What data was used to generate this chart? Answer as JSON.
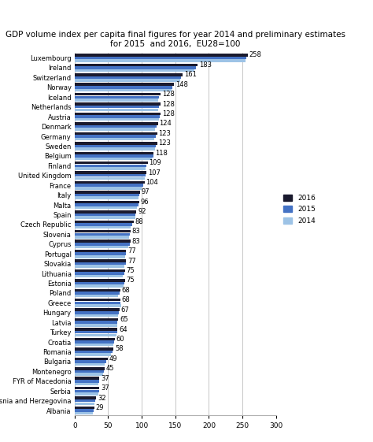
{
  "title": "GDP volume index per capita final figures for year 2014 and preliminary estimates\nfor 2015  and 2016,  EU28=100",
  "countries": [
    "Luxembourg",
    "Ireland",
    "Switzerland",
    "Norway",
    "Iceland",
    "Netherlands",
    "Austria",
    "Denmark",
    "Germany",
    "Sweden",
    "Belgium",
    "Finland",
    "United Kingdom",
    "France",
    "Italy",
    "Malta",
    "Spain",
    "Czech Republic",
    "Slovenia",
    "Cyprus",
    "Portugal",
    "Slovakia",
    "Lithuania",
    "Estonia",
    "Poland",
    "Greece",
    "Hungary",
    "Latvia",
    "Turkey",
    "Croatia",
    "Romania",
    "Bulgaria",
    "Montenegro",
    "FYR of Macedonia",
    "Serbia",
    "Bosnia and Herzegovina",
    "Albania"
  ],
  "values_2016": [
    258,
    183,
    161,
    148,
    128,
    128,
    128,
    124,
    123,
    123,
    118,
    109,
    107,
    104,
    97,
    96,
    92,
    88,
    83,
    83,
    77,
    77,
    75,
    75,
    68,
    68,
    67,
    65,
    64,
    60,
    58,
    49,
    45,
    37,
    37,
    32,
    29
  ],
  "values_2015": [
    256,
    181,
    159,
    146,
    126,
    126,
    127,
    122,
    121,
    121,
    117,
    107,
    106,
    102,
    96,
    95,
    91,
    86,
    82,
    82,
    76,
    76,
    74,
    74,
    67,
    68,
    66,
    64,
    63,
    59,
    56,
    47,
    44,
    36,
    36,
    31,
    28
  ],
  "values_2014": [
    254,
    178,
    157,
    144,
    124,
    125,
    126,
    120,
    119,
    120,
    115,
    106,
    104,
    100,
    95,
    93,
    90,
    84,
    81,
    80,
    75,
    74,
    72,
    73,
    65,
    69,
    65,
    63,
    62,
    58,
    54,
    45,
    43,
    35,
    35,
    30,
    27
  ],
  "color_2016": "#1a1a2e",
  "color_2015": "#4472c4",
  "color_2014": "#9dc3e6",
  "xlim": [
    0,
    300
  ],
  "xticks": [
    0,
    50,
    100,
    150,
    200,
    250,
    300
  ],
  "title_fontsize": 7.5,
  "label_fontsize": 6.0,
  "tick_fontsize": 6.5,
  "value_fontsize": 6.0
}
